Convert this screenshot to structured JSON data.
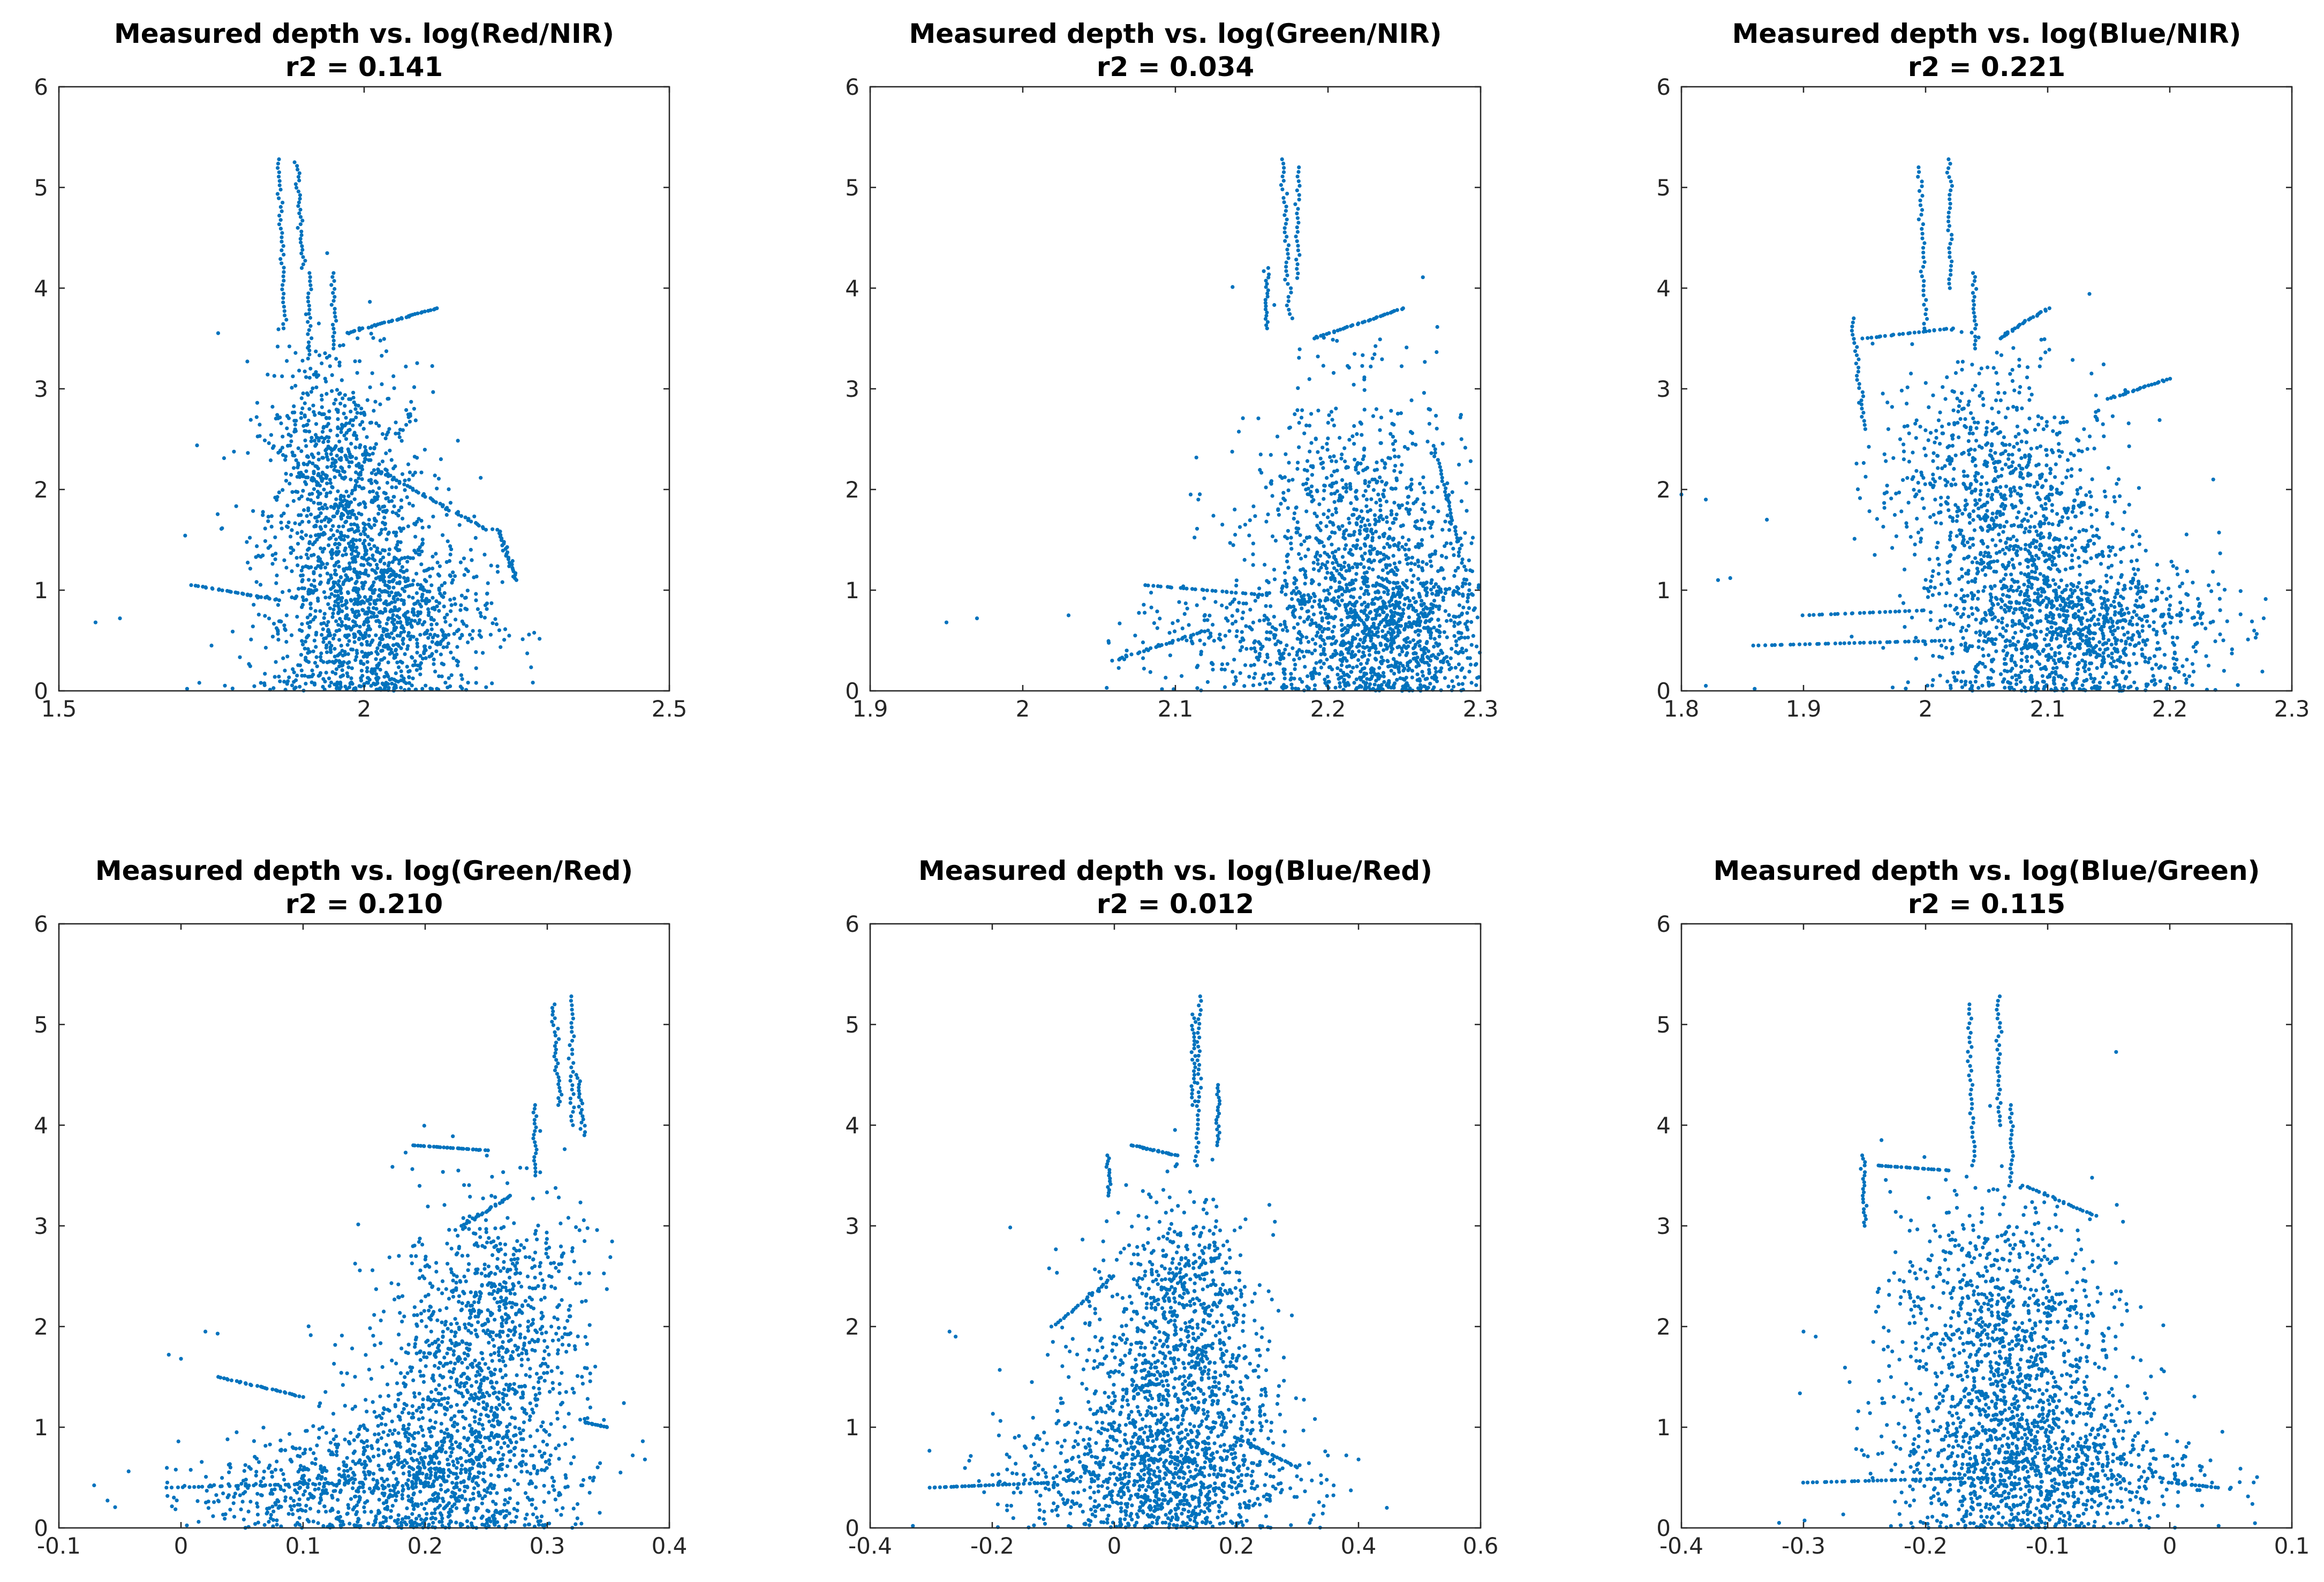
{
  "figure": {
    "colors": {
      "marker": "#0072BD",
      "axes": "#262626",
      "background": "#ffffff"
    }
  },
  "chart_data": [
    {
      "type": "scatter",
      "title": "Measured depth vs. log(Red/NIR)",
      "subtitle": "r2 = 0.141",
      "xlabel": "",
      "ylabel": "",
      "xlim": [
        1.5,
        2.5
      ],
      "ylim": [
        0,
        6
      ],
      "xticks": [
        1.5,
        2,
        2.5
      ],
      "xtick_labels": [
        "1.5",
        "2",
        "2.5"
      ],
      "yticks": [
        0,
        1,
        2,
        3,
        4,
        5,
        6
      ],
      "ytick_labels": [
        "0",
        "1",
        "2",
        "3",
        "4",
        "5",
        "6"
      ],
      "grid": false,
      "series": [
        {
          "name": "depth",
          "blobs": [
            {
              "x": 1.97,
              "y": 1.4,
              "sx": 0.07,
              "sy": 0.9,
              "n": 1100
            },
            {
              "x": 2.05,
              "y": 0.7,
              "sx": 0.08,
              "sy": 0.45,
              "n": 700
            },
            {
              "x": 1.93,
              "y": 2.5,
              "sx": 0.05,
              "sy": 0.5,
              "n": 220
            }
          ],
          "tracks": [
            {
              "x0": 1.86,
              "y0": 5.28,
              "x1": 1.87,
              "y1": 3.6,
              "n": 40
            },
            {
              "x0": 1.89,
              "y0": 5.25,
              "x1": 1.9,
              "y1": 4.2,
              "n": 30
            },
            {
              "x0": 1.91,
              "y0": 4.15,
              "x1": 1.91,
              "y1": 3.3,
              "n": 22
            },
            {
              "x0": 1.95,
              "y0": 4.15,
              "x1": 1.95,
              "y1": 3.4,
              "n": 20
            },
            {
              "x0": 1.97,
              "y0": 3.55,
              "x1": 2.12,
              "y1": 3.8,
              "n": 40
            },
            {
              "x0": 2.02,
              "y0": 2.2,
              "x1": 2.2,
              "y1": 1.6,
              "n": 45
            },
            {
              "x0": 2.22,
              "y0": 1.6,
              "x1": 2.25,
              "y1": 1.1,
              "n": 30
            },
            {
              "x0": 1.72,
              "y0": 1.05,
              "x1": 1.86,
              "y1": 0.9,
              "n": 30
            }
          ],
          "points": [
            [
              1.56,
              0.68
            ],
            [
              1.6,
              0.72
            ],
            [
              1.71,
              0.02
            ],
            [
              1.73,
              0.08
            ],
            [
              1.75,
              0.45
            ]
          ]
        }
      ]
    },
    {
      "type": "scatter",
      "title": "Measured depth vs. log(Green/NIR)",
      "subtitle": "r2 = 0.034",
      "xlabel": "",
      "ylabel": "",
      "xlim": [
        1.9,
        2.3
      ],
      "ylim": [
        0,
        6
      ],
      "xticks": [
        1.9,
        2,
        2.1,
        2.2,
        2.3
      ],
      "xtick_labels": [
        "1.9",
        "2",
        "2.1",
        "2.2",
        "2.3"
      ],
      "yticks": [
        0,
        1,
        2,
        3,
        4,
        5,
        6
      ],
      "ytick_labels": [
        "0",
        "1",
        "2",
        "3",
        "4",
        "5",
        "6"
      ],
      "grid": false,
      "series": [
        {
          "name": "depth",
          "blobs": [
            {
              "x": 2.22,
              "y": 1.3,
              "sx": 0.035,
              "sy": 0.85,
              "n": 1100
            },
            {
              "x": 2.25,
              "y": 0.6,
              "sx": 0.03,
              "sy": 0.35,
              "n": 650
            },
            {
              "x": 2.15,
              "y": 0.5,
              "sx": 0.04,
              "sy": 0.3,
              "n": 260
            }
          ],
          "tracks": [
            {
              "x0": 2.17,
              "y0": 5.28,
              "x1": 2.175,
              "y1": 3.7,
              "n": 38
            },
            {
              "x0": 2.18,
              "y0": 5.2,
              "x1": 2.18,
              "y1": 4.1,
              "n": 25
            },
            {
              "x0": 2.16,
              "y0": 4.2,
              "x1": 2.16,
              "y1": 3.6,
              "n": 20
            },
            {
              "x0": 2.19,
              "y0": 3.5,
              "x1": 2.25,
              "y1": 3.8,
              "n": 35
            },
            {
              "x0": 2.27,
              "y0": 2.4,
              "x1": 2.29,
              "y1": 1.2,
              "n": 35
            },
            {
              "x0": 2.08,
              "y0": 1.05,
              "x1": 2.16,
              "y1": 0.95,
              "n": 30
            },
            {
              "x0": 2.06,
              "y0": 0.3,
              "x1": 2.12,
              "y1": 0.6,
              "n": 30
            }
          ],
          "points": [
            [
              1.95,
              0.68
            ],
            [
              1.97,
              0.72
            ],
            [
              2.03,
              0.75
            ],
            [
              2.055,
              0.03
            ],
            [
              2.11,
              1.95
            ],
            [
              2.115,
              1.9
            ]
          ]
        }
      ]
    },
    {
      "type": "scatter",
      "title": "Measured depth vs. log(Blue/NIR)",
      "subtitle": "r2 = 0.221",
      "xlabel": "",
      "ylabel": "",
      "xlim": [
        1.8,
        2.3
      ],
      "ylim": [
        0,
        6
      ],
      "xticks": [
        1.8,
        1.9,
        2,
        2.1,
        2.2,
        2.3
      ],
      "xtick_labels": [
        "1.8",
        "1.9",
        "2",
        "2.1",
        "2.2",
        "2.3"
      ],
      "yticks": [
        0,
        1,
        2,
        3,
        4,
        5,
        6
      ],
      "ytick_labels": [
        "0",
        "1",
        "2",
        "3",
        "4",
        "5",
        "6"
      ],
      "grid": false,
      "series": [
        {
          "name": "depth",
          "blobs": [
            {
              "x": 2.08,
              "y": 1.3,
              "sx": 0.045,
              "sy": 0.8,
              "n": 1100
            },
            {
              "x": 2.14,
              "y": 0.6,
              "sx": 0.05,
              "sy": 0.35,
              "n": 700
            },
            {
              "x": 2.03,
              "y": 2.3,
              "sx": 0.035,
              "sy": 0.5,
              "n": 250
            }
          ],
          "tracks": [
            {
              "x0": 1.995,
              "y0": 5.2,
              "x1": 2.0,
              "y1": 3.6,
              "n": 35
            },
            {
              "x0": 2.02,
              "y0": 5.28,
              "x1": 2.02,
              "y1": 4.0,
              "n": 30
            },
            {
              "x0": 2.04,
              "y0": 4.15,
              "x1": 2.04,
              "y1": 3.4,
              "n": 20
            },
            {
              "x0": 1.94,
              "y0": 3.7,
              "x1": 1.95,
              "y1": 2.6,
              "n": 28
            },
            {
              "x0": 1.95,
              "y0": 3.5,
              "x1": 2.02,
              "y1": 3.6,
              "n": 25
            },
            {
              "x0": 2.06,
              "y0": 3.5,
              "x1": 2.1,
              "y1": 3.8,
              "n": 25
            },
            {
              "x0": 2.15,
              "y0": 2.9,
              "x1": 2.2,
              "y1": 3.1,
              "n": 25
            },
            {
              "x0": 1.86,
              "y0": 0.45,
              "x1": 2.02,
              "y1": 0.5,
              "n": 40
            },
            {
              "x0": 1.9,
              "y0": 0.75,
              "x1": 2.0,
              "y1": 0.8,
              "n": 25
            }
          ],
          "points": [
            [
              1.8,
              1.95
            ],
            [
              1.82,
              1.9
            ],
            [
              1.82,
              0.05
            ],
            [
              1.83,
              1.1
            ],
            [
              1.84,
              1.12
            ],
            [
              1.87,
              1.7
            ],
            [
              1.86,
              0.02
            ]
          ]
        }
      ]
    },
    {
      "type": "scatter",
      "title": "Measured depth vs. log(Green/Red)",
      "subtitle": "r2 = 0.210",
      "xlabel": "",
      "ylabel": "",
      "xlim": [
        -0.1,
        0.4
      ],
      "ylim": [
        0,
        6
      ],
      "xticks": [
        -0.1,
        0,
        0.1,
        0.2,
        0.3,
        0.4
      ],
      "xtick_labels": [
        "-0.1",
        "0",
        "0.1",
        "0.2",
        "0.3",
        "0.4"
      ],
      "yticks": [
        0,
        1,
        2,
        3,
        4,
        5,
        6
      ],
      "ytick_labels": [
        "0",
        "1",
        "2",
        "3",
        "4",
        "5",
        "6"
      ],
      "grid": false,
      "series": [
        {
          "name": "depth",
          "blobs": [
            {
              "x": 0.24,
              "y": 1.3,
              "sx": 0.045,
              "sy": 0.8,
              "n": 1100
            },
            {
              "x": 0.18,
              "y": 0.5,
              "sx": 0.06,
              "sy": 0.3,
              "n": 650
            },
            {
              "x": 0.27,
              "y": 2.4,
              "sx": 0.03,
              "sy": 0.5,
              "n": 250
            },
            {
              "x": 0.08,
              "y": 0.35,
              "sx": 0.05,
              "sy": 0.2,
              "n": 200
            }
          ],
          "tracks": [
            {
              "x0": 0.305,
              "y0": 5.2,
              "x1": 0.31,
              "y1": 4.2,
              "n": 30
            },
            {
              "x0": 0.32,
              "y0": 5.28,
              "x1": 0.32,
              "y1": 4.0,
              "n": 30
            },
            {
              "x0": 0.325,
              "y0": 4.5,
              "x1": 0.33,
              "y1": 3.9,
              "n": 20
            },
            {
              "x0": 0.29,
              "y0": 4.2,
              "x1": 0.29,
              "y1": 3.5,
              "n": 20
            },
            {
              "x0": 0.19,
              "y0": 3.8,
              "x1": 0.25,
              "y1": 3.75,
              "n": 30
            },
            {
              "x0": 0.23,
              "y0": 3.0,
              "x1": 0.27,
              "y1": 3.3,
              "n": 25
            },
            {
              "x0": 0.03,
              "y0": 1.5,
              "x1": 0.1,
              "y1": 1.3,
              "n": 30
            },
            {
              "x0": -0.01,
              "y0": 0.4,
              "x1": 0.15,
              "y1": 0.45,
              "n": 40
            },
            {
              "x0": 0.33,
              "y0": 1.05,
              "x1": 0.35,
              "y1": 1.0,
              "n": 15
            }
          ],
          "points": [
            [
              -0.01,
              1.72
            ],
            [
              0.0,
              1.68
            ],
            [
              0.02,
              1.95
            ],
            [
              0.03,
              1.93
            ],
            [
              0.38,
              0.68
            ],
            [
              0.37,
              0.72
            ],
            [
              0.36,
              0.55
            ]
          ]
        }
      ]
    },
    {
      "type": "scatter",
      "title": "Measured depth vs. log(Blue/Red)",
      "subtitle": "r2 = 0.012",
      "xlabel": "",
      "ylabel": "",
      "xlim": [
        -0.4,
        0.6
      ],
      "ylim": [
        0,
        6
      ],
      "xticks": [
        -0.4,
        -0.2,
        0,
        0.2,
        0.4,
        0.6
      ],
      "xtick_labels": [
        "-0.4",
        "-0.2",
        "0",
        "0.2",
        "0.4",
        "0.6"
      ],
      "yticks": [
        0,
        1,
        2,
        3,
        4,
        5,
        6
      ],
      "ytick_labels": [
        "0",
        "1",
        "2",
        "3",
        "4",
        "5",
        "6"
      ],
      "grid": false,
      "series": [
        {
          "name": "depth",
          "blobs": [
            {
              "x": 0.1,
              "y": 1.3,
              "sx": 0.08,
              "sy": 0.8,
              "n": 1100
            },
            {
              "x": 0.05,
              "y": 0.5,
              "sx": 0.12,
              "sy": 0.3,
              "n": 650
            },
            {
              "x": 0.12,
              "y": 2.3,
              "sx": 0.05,
              "sy": 0.5,
              "n": 250
            }
          ],
          "tracks": [
            {
              "x0": 0.14,
              "y0": 5.28,
              "x1": 0.135,
              "y1": 3.6,
              "n": 38
            },
            {
              "x0": 0.13,
              "y0": 5.1,
              "x1": 0.13,
              "y1": 4.2,
              "n": 25
            },
            {
              "x0": 0.17,
              "y0": 4.4,
              "x1": 0.17,
              "y1": 3.8,
              "n": 20
            },
            {
              "x0": -0.01,
              "y0": 3.7,
              "x1": -0.01,
              "y1": 3.3,
              "n": 15
            },
            {
              "x0": 0.03,
              "y0": 3.8,
              "x1": 0.1,
              "y1": 3.7,
              "n": 25
            },
            {
              "x0": -0.3,
              "y0": 0.4,
              "x1": -0.1,
              "y1": 0.45,
              "n": 40
            },
            {
              "x0": -0.1,
              "y0": 2.0,
              "x1": 0.0,
              "y1": 2.5,
              "n": 25
            },
            {
              "x0": 0.2,
              "y0": 0.9,
              "x1": 0.3,
              "y1": 0.6,
              "n": 25
            }
          ],
          "points": [
            [
              -0.27,
              1.95
            ],
            [
              -0.26,
              1.9
            ],
            [
              0.4,
              0.68
            ],
            [
              0.38,
              0.72
            ],
            [
              -0.33,
              0.02
            ],
            [
              0.32,
              0.05
            ]
          ]
        }
      ]
    },
    {
      "type": "scatter",
      "title": "Measured depth vs. log(Blue/Green)",
      "subtitle": "r2 = 0.115",
      "xlabel": "",
      "ylabel": "",
      "xlim": [
        -0.4,
        0.1
      ],
      "ylim": [
        0,
        6
      ],
      "xticks": [
        -0.4,
        -0.3,
        -0.2,
        -0.1,
        0,
        0.1
      ],
      "xtick_labels": [
        "-0.4",
        "-0.3",
        "-0.2",
        "-0.1",
        "0",
        "0.1"
      ],
      "yticks": [
        0,
        1,
        2,
        3,
        4,
        5,
        6
      ],
      "ytick_labels": [
        "0",
        "1",
        "2",
        "3",
        "4",
        "5",
        "6"
      ],
      "grid": false,
      "series": [
        {
          "name": "depth",
          "blobs": [
            {
              "x": -0.13,
              "y": 1.3,
              "sx": 0.045,
              "sy": 0.8,
              "n": 1100
            },
            {
              "x": -0.1,
              "y": 0.6,
              "sx": 0.06,
              "sy": 0.35,
              "n": 650
            },
            {
              "x": -0.16,
              "y": 2.4,
              "sx": 0.035,
              "sy": 0.5,
              "n": 250
            }
          ],
          "tracks": [
            {
              "x0": -0.165,
              "y0": 5.2,
              "x1": -0.16,
              "y1": 3.6,
              "n": 35
            },
            {
              "x0": -0.14,
              "y0": 5.28,
              "x1": -0.14,
              "y1": 4.0,
              "n": 30
            },
            {
              "x0": -0.13,
              "y0": 4.2,
              "x1": -0.13,
              "y1": 3.4,
              "n": 20
            },
            {
              "x0": -0.25,
              "y0": 3.7,
              "x1": -0.25,
              "y1": 3.0,
              "n": 22
            },
            {
              "x0": -0.24,
              "y0": 3.6,
              "x1": -0.18,
              "y1": 3.55,
              "n": 25
            },
            {
              "x0": -0.12,
              "y0": 3.4,
              "x1": -0.06,
              "y1": 3.1,
              "n": 25
            },
            {
              "x0": -0.3,
              "y0": 0.45,
              "x1": -0.15,
              "y1": 0.5,
              "n": 40
            },
            {
              "x0": 0.0,
              "y0": 0.45,
              "x1": 0.04,
              "y1": 0.4,
              "n": 20
            }
          ],
          "points": [
            [
              -0.3,
              1.95
            ],
            [
              -0.29,
              1.9
            ],
            [
              -0.32,
              0.05
            ],
            [
              0.05,
              0.4
            ],
            [
              0.04,
              0.02
            ]
          ]
        }
      ]
    }
  ]
}
